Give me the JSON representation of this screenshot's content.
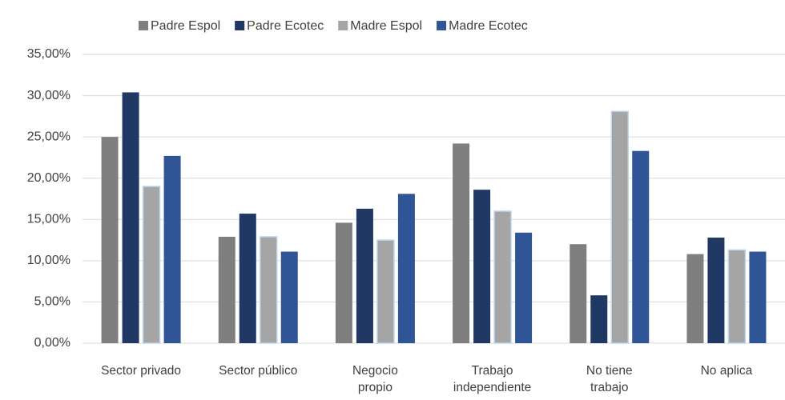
{
  "chart_data": {
    "type": "bar",
    "categories": [
      "Sector privado",
      "Sector público",
      "Negocio propio",
      "Trabajo independiente",
      "No tiene trabajo",
      "No aplica"
    ],
    "series": [
      {
        "name": "Padre Espol",
        "color": "#7f7f7f",
        "values": [
          25.0,
          12.9,
          14.6,
          24.2,
          12.0,
          10.8
        ]
      },
      {
        "name": "Padre Ecotec",
        "color": "#1f3864",
        "values": [
          30.4,
          15.7,
          16.3,
          18.6,
          5.8,
          12.8
        ]
      },
      {
        "name": "Madre Espol",
        "color": "#a5a5a5",
        "values": [
          19.0,
          12.9,
          12.5,
          16.0,
          28.1,
          11.3
        ]
      },
      {
        "name": "Madre Ecotec",
        "color": "#2f5597",
        "values": [
          22.7,
          11.1,
          18.1,
          13.4,
          23.3,
          11.1
        ]
      }
    ],
    "ylim": [
      0,
      35
    ],
    "yticks": [
      {
        "value": 0,
        "label": "0,00%"
      },
      {
        "value": 5,
        "label": "5,00%"
      },
      {
        "value": 10,
        "label": "10,00%"
      },
      {
        "value": 15,
        "label": "15,00%"
      },
      {
        "value": 20,
        "label": "20,00%"
      },
      {
        "value": 25,
        "label": "25,00%"
      },
      {
        "value": 30,
        "label": "30,00%"
      },
      {
        "value": 35,
        "label": "35,00%"
      }
    ],
    "grid": true,
    "legend": "top"
  }
}
